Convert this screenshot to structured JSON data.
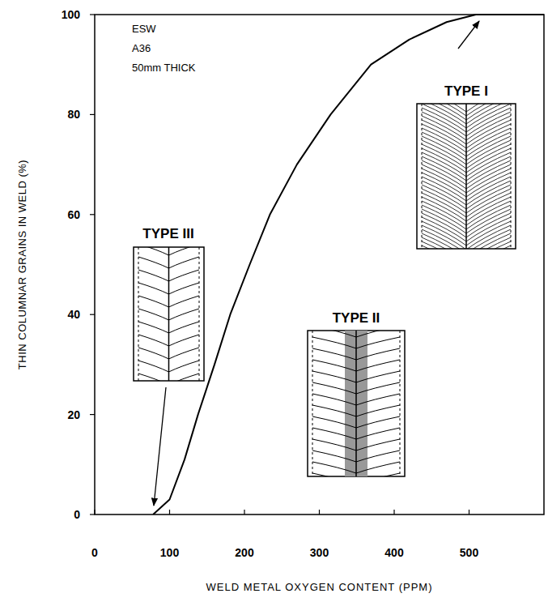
{
  "chart_data": {
    "type": "line",
    "x_label": "WELD METAL OXYGEN CONTENT (PPM)",
    "y_label": "THIN COLUMNAR GRAINS IN WELD (%)",
    "x": [
      78,
      100,
      120,
      138,
      160,
      181,
      207,
      234,
      270,
      315,
      369,
      420,
      470,
      509,
      600
    ],
    "series": [
      {
        "color": "#000000",
        "line_style": "solid",
        "values": [
          0,
          3,
          11,
          20,
          30,
          40,
          50,
          60,
          70,
          80,
          90,
          95,
          98.5,
          100,
          100
        ]
      }
    ],
    "xlim": [
      0,
      600
    ],
    "ylim": [
      0,
      100
    ],
    "xticks": [
      0,
      100,
      200,
      300,
      400,
      500
    ],
    "yticks": [
      0,
      20,
      40,
      60,
      80,
      100
    ],
    "grid": false,
    "annotations": [
      "ESW",
      "A36",
      "50mm THICK",
      "TYPE I",
      "TYPE II",
      "TYPE III"
    ]
  }
}
